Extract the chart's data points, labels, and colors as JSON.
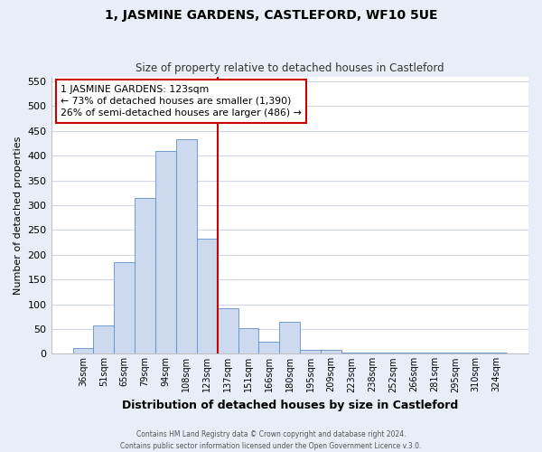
{
  "title": "1, JASMINE GARDENS, CASTLEFORD, WF10 5UE",
  "subtitle": "Size of property relative to detached houses in Castleford",
  "xlabel": "Distribution of detached houses by size in Castleford",
  "ylabel": "Number of detached properties",
  "bar_labels": [
    "36sqm",
    "51sqm",
    "65sqm",
    "79sqm",
    "94sqm",
    "108sqm",
    "123sqm",
    "137sqm",
    "151sqm",
    "166sqm",
    "180sqm",
    "195sqm",
    "209sqm",
    "223sqm",
    "238sqm",
    "252sqm",
    "266sqm",
    "281sqm",
    "295sqm",
    "310sqm",
    "324sqm"
  ],
  "bar_values": [
    12,
    58,
    185,
    315,
    410,
    433,
    232,
    92,
    52,
    25,
    65,
    8,
    8,
    3,
    3,
    2,
    2,
    2,
    2,
    2,
    2
  ],
  "bar_color": "#cdd9ee",
  "bar_edge_color": "#6090c8",
  "vline_color": "#cc0000",
  "ylim": [
    0,
    560
  ],
  "yticks": [
    0,
    50,
    100,
    150,
    200,
    250,
    300,
    350,
    400,
    450,
    500,
    550
  ],
  "annotation_title": "1 JASMINE GARDENS: 123sqm",
  "annotation_line1": "← 73% of detached houses are smaller (1,390)",
  "annotation_line2": "26% of semi-detached houses are larger (486) →",
  "annotation_box_color": "#ffffff",
  "annotation_box_edge": "#cc0000",
  "footer1": "Contains HM Land Registry data © Crown copyright and database right 2024.",
  "footer2": "Contains public sector information licensed under the Open Government Licence v.3.0.",
  "plot_bg_color": "#ffffff",
  "fig_bg_color": "#e8edf7",
  "grid_color": "#d0d8e8"
}
